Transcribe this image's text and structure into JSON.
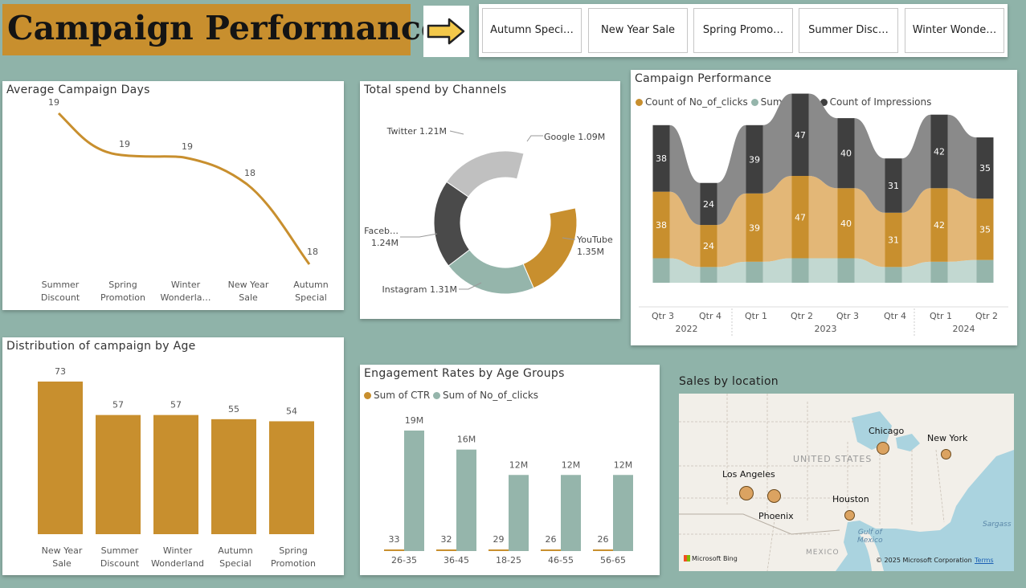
{
  "header": {
    "title": "Campaign Performances"
  },
  "slicer": {
    "items": [
      "Autumn Speci…",
      "New Year Sale",
      "Spring Promo…",
      "Summer Disc…",
      "Winter Wonde…"
    ]
  },
  "avg_days": {
    "title": "Average Campaign Days",
    "chart_data": {
      "type": "line",
      "categories": [
        [
          "Summer",
          "Discount"
        ],
        [
          "Spring",
          "Promotion"
        ],
        [
          "Winter",
          "Wonderla…"
        ],
        [
          "New Year",
          "Sale"
        ],
        [
          "Autumn",
          "Special"
        ]
      ],
      "values": [
        19,
        19,
        19,
        18,
        18
      ],
      "color": "#c88f2e"
    }
  },
  "spend": {
    "title": "Total spend by Channels",
    "chart_data": {
      "type": "pie",
      "slices": [
        {
          "name": "Google",
          "label": "Google 1.09M",
          "value": 1.09,
          "color": "#ffffff"
        },
        {
          "name": "YouTube",
          "label": [
            "YouTube",
            "1.35M"
          ],
          "value": 1.35,
          "color": "#c88f2e"
        },
        {
          "name": "Instagram",
          "label": "Instagram 1.31M",
          "value": 1.31,
          "color": "#95b5ab"
        },
        {
          "name": "Facebook",
          "label": [
            "Faceb…",
            "1.24M"
          ],
          "value": 1.24,
          "color": "#4a4a4a"
        },
        {
          "name": "Twitter",
          "label": "Twitter 1.21M",
          "value": 1.21,
          "color": "#c0c0c0"
        }
      ]
    }
  },
  "perf": {
    "title": "Campaign Performance",
    "legend": [
      {
        "label": "Count of No_of_clicks",
        "color": "#c88f2e"
      },
      {
        "label": "Sum of CTR",
        "color": "#95b5ab"
      },
      {
        "label": "Count of Impressions",
        "color": "#3f3f3f"
      }
    ],
    "chart_data": {
      "type": "area",
      "categories": [
        "Qtr 3",
        "Qtr 4",
        "Qtr 1",
        "Qtr 2",
        "Qtr 3",
        "Qtr 4",
        "Qtr 1",
        "Qtr 2"
      ],
      "years": [
        {
          "label": "2022",
          "span": [
            0,
            1
          ]
        },
        {
          "label": "2023",
          "span": [
            2,
            5
          ]
        },
        {
          "label": "2024",
          "span": [
            6,
            7
          ]
        }
      ],
      "series": [
        {
          "name": "Sum of CTR",
          "values": [
            14,
            9,
            12,
            14,
            14,
            9,
            12,
            13
          ]
        },
        {
          "name": "Count of No_of_clicks",
          "values": [
            38,
            24,
            39,
            47,
            40,
            31,
            42,
            35
          ]
        },
        {
          "name": "Count of Impressions",
          "values": [
            38,
            24,
            39,
            47,
            40,
            31,
            42,
            35
          ]
        }
      ]
    }
  },
  "age": {
    "title": "Distribution of campaign by Age",
    "chart_data": {
      "type": "bar",
      "categories": [
        [
          "New Year",
          "Sale"
        ],
        [
          "Summer",
          "Discount"
        ],
        [
          "Winter",
          "Wonderland"
        ],
        [
          "Autumn",
          "Special"
        ],
        [
          "Spring",
          "Promotion"
        ]
      ],
      "values": [
        73,
        57,
        57,
        55,
        54
      ],
      "color": "#c88f2e"
    }
  },
  "engage": {
    "title": "Engagement Rates by Age Groups",
    "legend": [
      {
        "label": "Sum of CTR",
        "color": "#c88f2e"
      },
      {
        "label": "Sum of No_of_clicks",
        "color": "#95b5ab"
      }
    ],
    "chart_data": {
      "type": "bar",
      "categories": [
        "26-35",
        "36-45",
        "18-25",
        "46-55",
        "56-65"
      ],
      "series": [
        {
          "name": "Sum of CTR",
          "values": [
            33,
            32,
            29,
            26,
            26
          ]
        },
        {
          "name": "Sum of No_of_clicks",
          "values": [
            19,
            16,
            12,
            12,
            12
          ],
          "labels": [
            "19M",
            "16M",
            "12M",
            "12M",
            "12M"
          ]
        }
      ]
    }
  },
  "map": {
    "title": "Sales by location",
    "country_label": "UNITED STATES",
    "gulf_label": [
      "Gulf of",
      "Mexico"
    ],
    "mexico_label": "MEXICO",
    "sargasso_label": "Sargass",
    "cities": [
      {
        "name": "Chicago"
      },
      {
        "name": "New York"
      },
      {
        "name": "Los Angeles"
      },
      {
        "name": "Phoenix"
      },
      {
        "name": "Houston"
      }
    ],
    "bing": "Microsoft Bing",
    "copyright": "© 2025 Microsoft Corporation",
    "terms": "Terms"
  }
}
